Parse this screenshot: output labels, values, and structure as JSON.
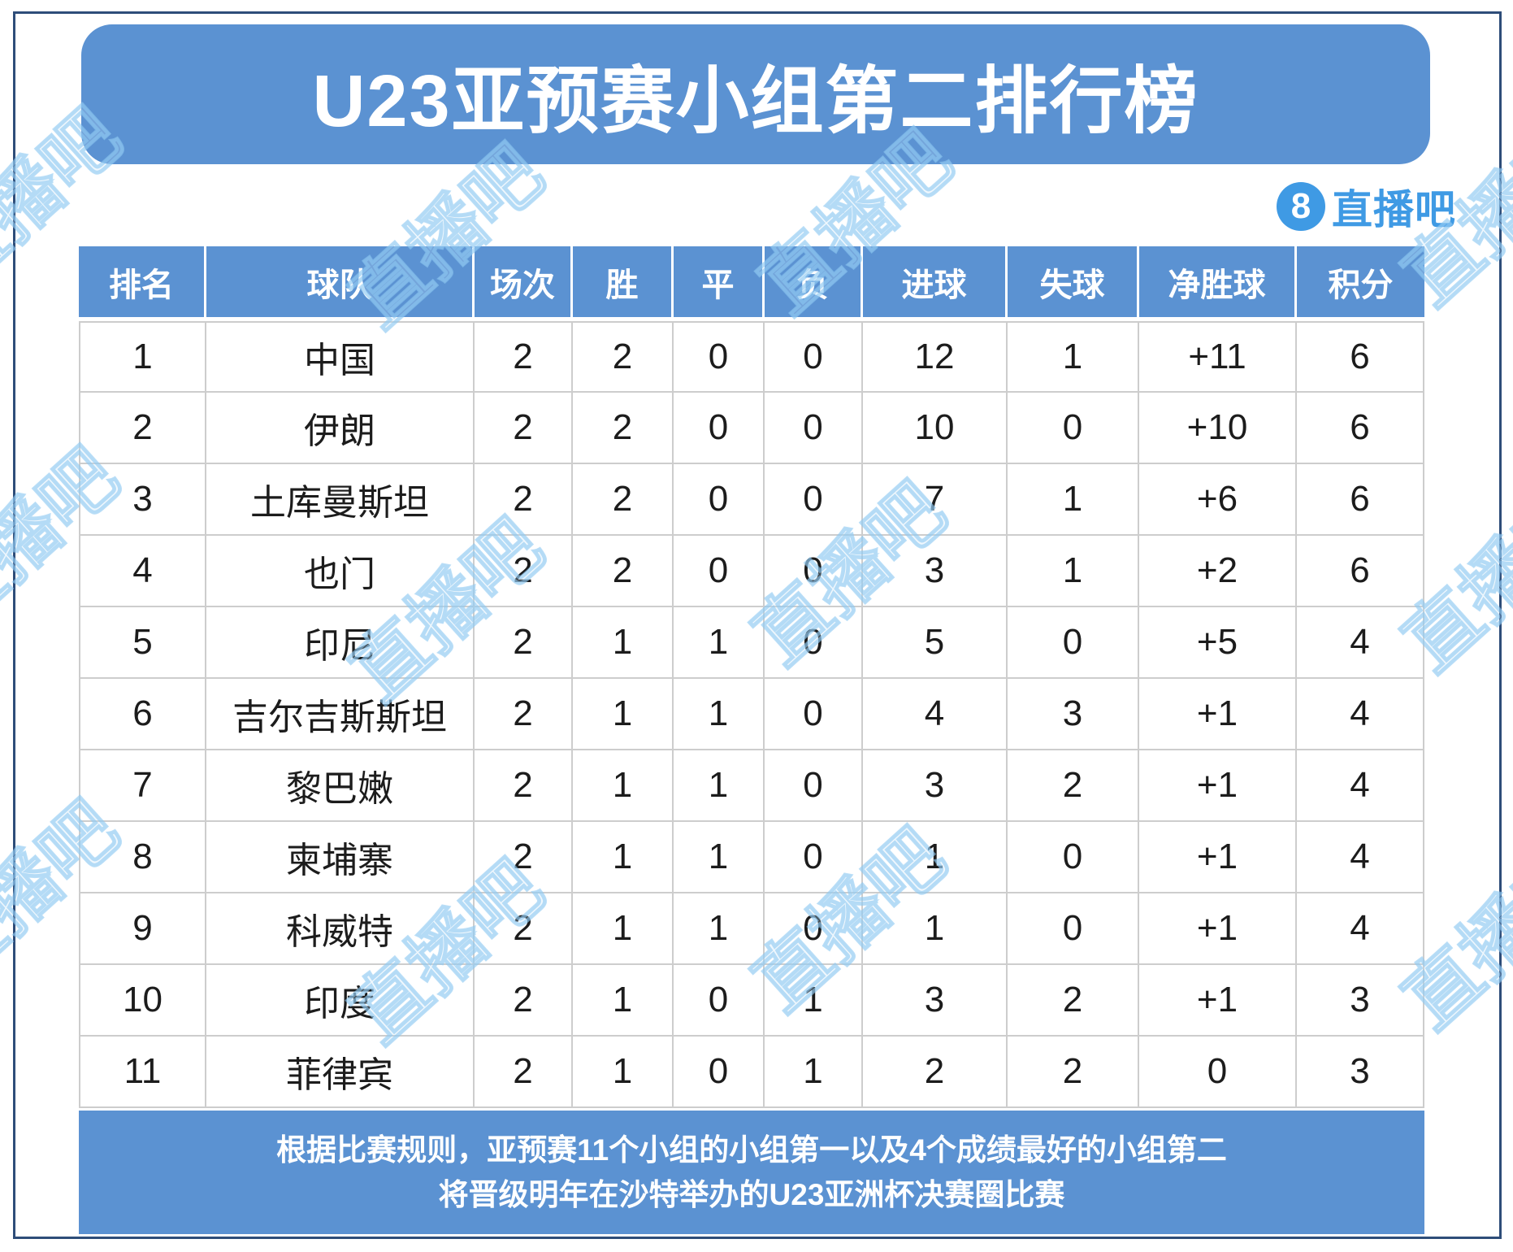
{
  "header": {
    "title": "U23亚预赛小组第二排行榜"
  },
  "logo": {
    "badge": "8",
    "text": "直播吧"
  },
  "chart_data": {
    "type": "table",
    "title": "U23亚预赛小组第二排行榜",
    "columns": [
      "排名",
      "球队",
      "场次",
      "胜",
      "平",
      "负",
      "进球",
      "失球",
      "净胜球",
      "积分"
    ],
    "rows": [
      [
        "1",
        "中国",
        "2",
        "2",
        "0",
        "0",
        "12",
        "1",
        "+11",
        "6"
      ],
      [
        "2",
        "伊朗",
        "2",
        "2",
        "0",
        "0",
        "10",
        "0",
        "+10",
        "6"
      ],
      [
        "3",
        "土库曼斯坦",
        "2",
        "2",
        "0",
        "0",
        "7",
        "1",
        "+6",
        "6"
      ],
      [
        "4",
        "也门",
        "2",
        "2",
        "0",
        "0",
        "3",
        "1",
        "+2",
        "6"
      ],
      [
        "5",
        "印尼",
        "2",
        "1",
        "1",
        "0",
        "5",
        "0",
        "+5",
        "4"
      ],
      [
        "6",
        "吉尔吉斯斯坦",
        "2",
        "1",
        "1",
        "0",
        "4",
        "3",
        "+1",
        "4"
      ],
      [
        "7",
        "黎巴嫩",
        "2",
        "1",
        "1",
        "0",
        "3",
        "2",
        "+1",
        "4"
      ],
      [
        "8",
        "柬埔寨",
        "2",
        "1",
        "1",
        "0",
        "1",
        "0",
        "+1",
        "4"
      ],
      [
        "9",
        "科威特",
        "2",
        "1",
        "1",
        "0",
        "1",
        "0",
        "+1",
        "4"
      ],
      [
        "10",
        "印度",
        "2",
        "1",
        "0",
        "1",
        "3",
        "2",
        "+1",
        "3"
      ],
      [
        "11",
        "菲律宾",
        "2",
        "1",
        "0",
        "1",
        "2",
        "2",
        "0",
        "3"
      ]
    ]
  },
  "footer": {
    "line1": "根据比赛规则，亚预赛11个小组的小组第一以及4个成绩最好的小组第二",
    "line2": "将晋级明年在沙特举办的U23亚洲杯决赛圈比赛"
  },
  "watermark": {
    "text": "直播吧"
  },
  "colors": {
    "primary_blue": "#5b92d2",
    "logo_blue": "#3f9ae4",
    "grid_line": "#cdcdcd",
    "frame_navy": "#2e4d79",
    "body_text": "#1c1c1c"
  }
}
